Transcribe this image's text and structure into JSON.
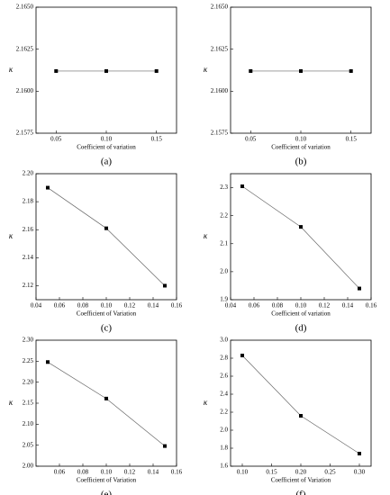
{
  "chart_data": [
    {
      "type": "line",
      "caption": "(a)",
      "xlabel": "Coefficient of variation",
      "ylabel": "κ",
      "x": [
        0.05,
        0.1,
        0.15
      ],
      "values": [
        2.1612,
        2.1612,
        2.1612
      ],
      "color": "#000000",
      "xlim": [
        0.03,
        0.17
      ],
      "xticks": [
        0.05,
        {
          "value": 0.1,
          "label": "0.10"
        },
        0.15
      ],
      "ylim": [
        2.1575,
        2.165
      ],
      "yticks": [
        2.1575,
        {
          "value": 2.16,
          "label": "2.1600"
        },
        2.1625,
        {
          "value": 2.165,
          "label": "2.1650"
        }
      ]
    },
    {
      "type": "line",
      "caption": "(b)",
      "xlabel": "Coefficient of variation",
      "ylabel": "κ",
      "x": [
        0.05,
        0.1,
        0.15
      ],
      "values": [
        2.1612,
        2.1612,
        2.1612
      ],
      "color": "#000000",
      "xlim": [
        0.03,
        0.17
      ],
      "xticks": [
        0.05,
        {
          "value": 0.1,
          "label": "0.10"
        },
        0.15
      ],
      "ylim": [
        2.1575,
        2.165
      ],
      "yticks": [
        2.1575,
        {
          "value": 2.16,
          "label": "2.1600"
        },
        2.1625,
        {
          "value": 2.165,
          "label": "2.1650"
        }
      ]
    },
    {
      "type": "line",
      "caption": "(c)",
      "xlabel": "Coefficient of Variation",
      "ylabel": "κ",
      "x": [
        0.05,
        0.1,
        0.15
      ],
      "values": [
        2.19,
        2.161,
        2.12
      ],
      "color": "#000000",
      "xlim": [
        0.04,
        0.16
      ],
      "xticks": [
        0.04,
        0.06,
        0.08,
        {
          "value": 0.1,
          "label": "0.10"
        },
        0.12,
        0.14,
        0.16
      ],
      "ylim": [
        2.11,
        2.2
      ],
      "yticks": [
        2.12,
        2.14,
        2.16,
        2.18,
        {
          "value": 2.2,
          "label": "2.20"
        }
      ]
    },
    {
      "type": "line",
      "caption": "(d)",
      "xlabel": "Coefficient of variation",
      "ylabel": "κ",
      "x": [
        0.05,
        0.1,
        0.15
      ],
      "values": [
        2.305,
        2.16,
        1.94
      ],
      "color": "#000000",
      "xlim": [
        0.04,
        0.16
      ],
      "xticks": [
        0.04,
        0.06,
        0.08,
        {
          "value": 0.1,
          "label": "0.10"
        },
        0.12,
        0.14,
        0.16
      ],
      "ylim": [
        1.9,
        2.35
      ],
      "yticks": [
        1.9,
        {
          "value": 2,
          "label": "2.0"
        },
        2.1,
        2.2,
        2.3
      ]
    },
    {
      "type": "line",
      "caption": "(e)",
      "xlabel": "Coefficient of Variation",
      "ylabel": "κ",
      "x": [
        0.05,
        0.1,
        0.15
      ],
      "values": [
        2.248,
        2.161,
        2.048
      ],
      "color": "#000000",
      "xlim": [
        0.04,
        0.16
      ],
      "xticks": [
        0.06,
        0.08,
        {
          "value": 0.1,
          "label": "0.10"
        },
        0.12,
        0.14,
        0.16
      ],
      "ylim": [
        2.0,
        2.3
      ],
      "yticks": [
        {
          "value": 2,
          "label": "2.00"
        },
        2.05,
        {
          "value": 2.1,
          "label": "2.10"
        },
        2.15,
        {
          "value": 2.2,
          "label": "2.20"
        },
        2.25,
        {
          "value": 2.3,
          "label": "2.30"
        }
      ]
    },
    {
      "type": "line",
      "caption": "(f)",
      "xlabel": "Coefficient of Variation",
      "ylabel": "κ",
      "x": [
        0.1,
        0.2,
        0.3
      ],
      "values": [
        2.83,
        2.16,
        1.74
      ],
      "color": "#000000",
      "xlim": [
        0.08,
        0.32
      ],
      "xticks": [
        {
          "value": 0.1,
          "label": "0.10"
        },
        0.15,
        {
          "value": 0.2,
          "label": "0.20"
        },
        0.25,
        {
          "value": 0.3,
          "label": "0.30"
        }
      ],
      "ylim": [
        1.6,
        3.0
      ],
      "yticks": [
        1.6,
        1.8,
        {
          "value": 2,
          "label": "2.0"
        },
        2.2,
        2.4,
        2.6,
        2.8,
        {
          "value": 3,
          "label": "3.0"
        }
      ]
    }
  ]
}
